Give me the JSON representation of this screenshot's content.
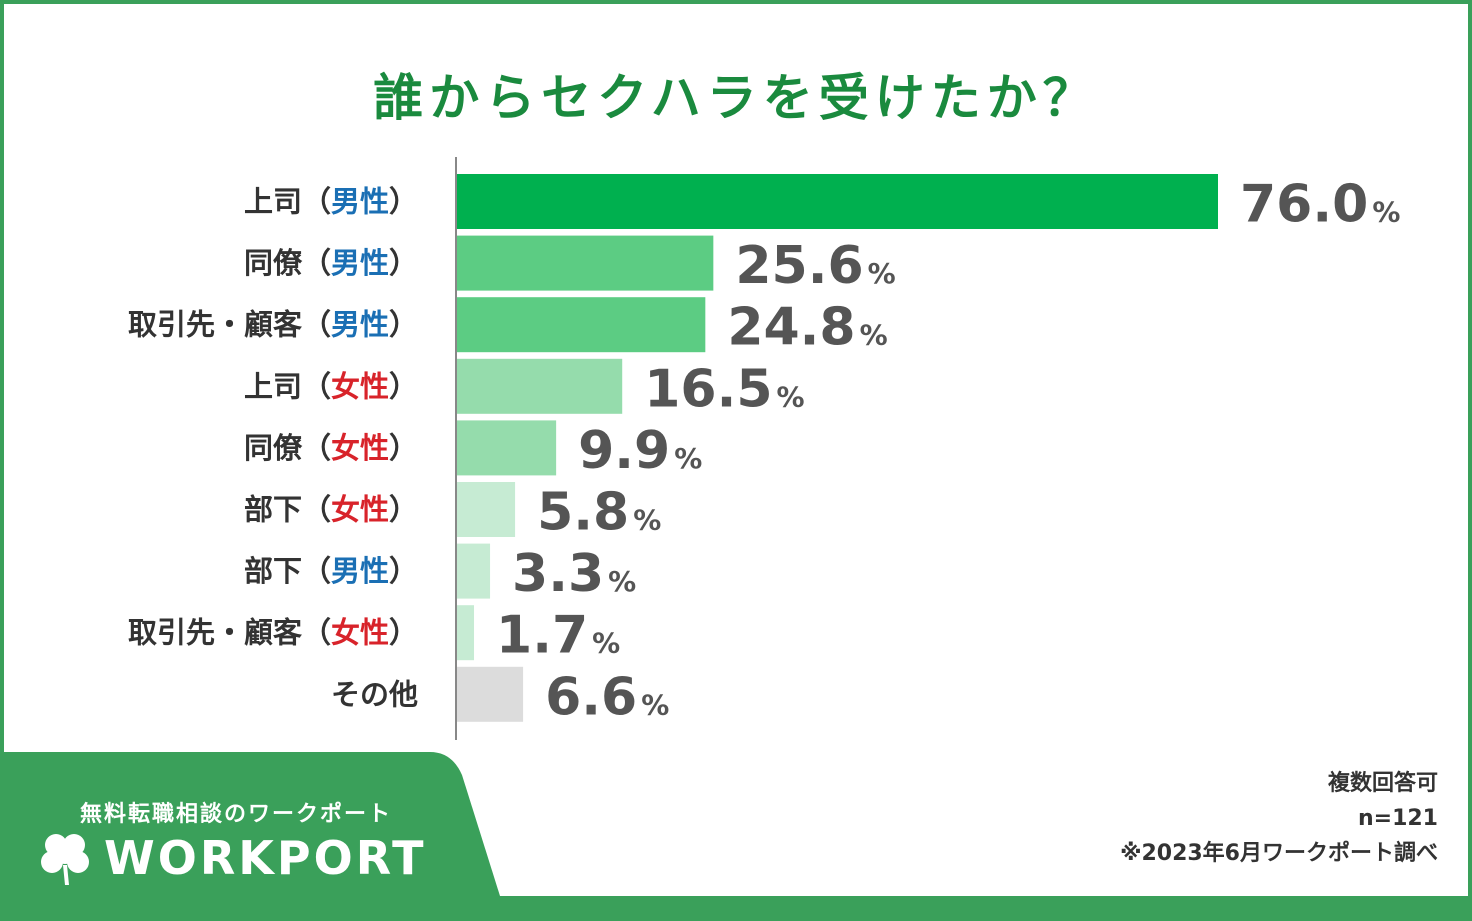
{
  "header": {
    "title": "誰からセクハラを受けたか？"
  },
  "chart_data": {
    "type": "bar",
    "orientation": "horizontal",
    "title": "誰からセクハラを受けたか？",
    "categories": [
      {
        "base": "上司",
        "gender": "男性",
        "gender_color": "#1a6fb4"
      },
      {
        "base": "同僚",
        "gender": "男性",
        "gender_color": "#1a6fb4"
      },
      {
        "base": "取引先・顧客",
        "gender": "男性",
        "gender_color": "#1a6fb4"
      },
      {
        "base": "上司",
        "gender": "女性",
        "gender_color": "#d8232a"
      },
      {
        "base": "同僚",
        "gender": "女性",
        "gender_color": "#d8232a"
      },
      {
        "base": "部下",
        "gender": "女性",
        "gender_color": "#d8232a"
      },
      {
        "base": "部下",
        "gender": "男性",
        "gender_color": "#1a6fb4"
      },
      {
        "base": "取引先・顧客",
        "gender": "女性",
        "gender_color": "#d8232a"
      },
      {
        "base": "その他",
        "gender": "",
        "gender_color": ""
      }
    ],
    "values": [
      76.0,
      25.6,
      24.8,
      16.5,
      9.9,
      5.8,
      3.3,
      1.7,
      6.6
    ],
    "value_labels": [
      "76.0",
      "25.6",
      "24.8",
      "16.5",
      "9.9",
      "5.8",
      "3.3",
      "1.7",
      "6.6"
    ],
    "unit": "%",
    "bar_colors": [
      "#00b04f",
      "#5ccc83",
      "#5ccc83",
      "#95dcac",
      "#95dcac",
      "#c6ebd3",
      "#c6ebd3",
      "#c6ebd3",
      "#dcdcdc"
    ],
    "xlim": [
      0,
      76.0
    ]
  },
  "footer": {
    "tagline": "無料転職相談のワークポート",
    "logo": "WORKPORT",
    "notes": [
      "複数回答可",
      "n=121",
      "※2023年6月ワークポート調べ"
    ],
    "accent": "#3aa05a"
  }
}
